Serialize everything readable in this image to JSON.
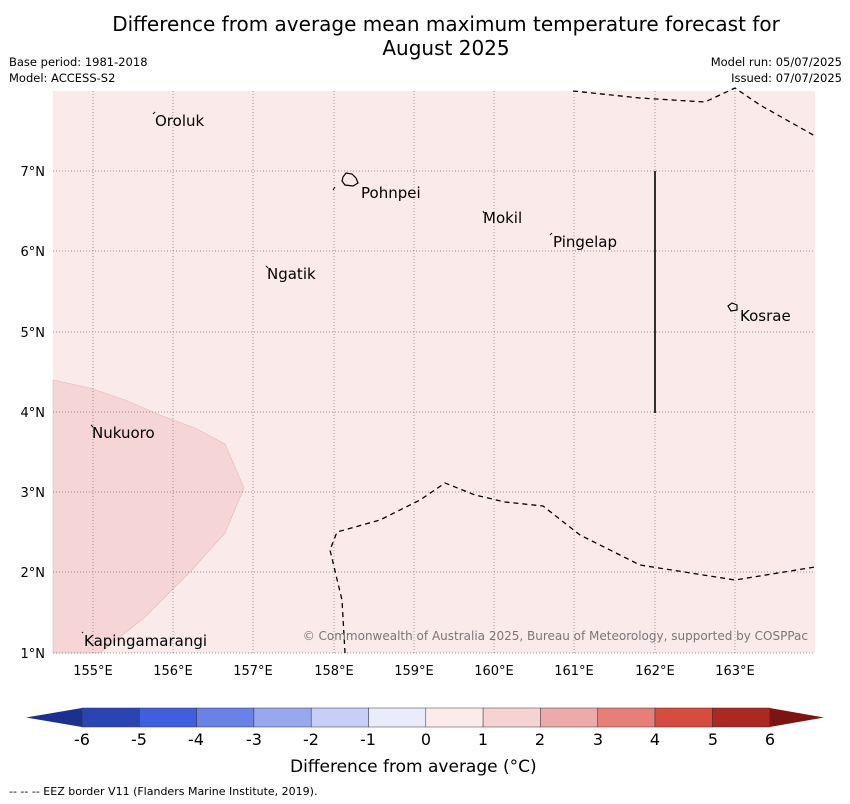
{
  "title_line1": "Difference from average mean maximum temperature forecast for",
  "title_line2": "August 2025",
  "base_period": "Base period: 1981-2018",
  "model": "Model: ACCESS-S2",
  "model_run": "Model run: 05/07/2025",
  "issued": "Issued: 07/07/2025",
  "lon_labels": [
    "155°E",
    "156°E",
    "157°E",
    "158°E",
    "159°E",
    "160°E",
    "161°E",
    "162°E",
    "163°E"
  ],
  "lat_labels": [
    "7°N",
    "6°N",
    "5°N",
    "4°N",
    "3°N",
    "2°N",
    "1°N"
  ],
  "places": [
    {
      "name": "Oroluk"
    },
    {
      "name": "Pohnpei"
    },
    {
      "name": "Mokil"
    },
    {
      "name": "Pingelap"
    },
    {
      "name": "Ngatik"
    },
    {
      "name": "Kosrae"
    },
    {
      "name": "Nukuoro"
    },
    {
      "name": "Kapingamarangi"
    }
  ],
  "copyright": "© Commonwealth of Australia 2025, Bureau of Meteorology, supported by COSPPac",
  "colorbar": {
    "ticks": [
      "-6",
      "-5",
      "-4",
      "-3",
      "-2",
      "-1",
      "0",
      "1",
      "2",
      "3",
      "4",
      "5",
      "6"
    ],
    "colors": [
      "#1d2f8f",
      "#2b44b3",
      "#3f5fde",
      "#6a82e8",
      "#98a8ef",
      "#c8cff6",
      "#ebecfb",
      "#fbeceb",
      "#f5d3d3",
      "#edaaaa",
      "#e67f7a",
      "#d84b3f",
      "#ab2823",
      "#7d1414"
    ],
    "title": "Difference from average (°C)"
  },
  "map_colors": {
    "background": "#fbeaea",
    "zone_1_2": "#f5d5d5"
  },
  "footnote": "--  --  -- EEZ border V11 (Flanders Marine Institute, 2019)."
}
